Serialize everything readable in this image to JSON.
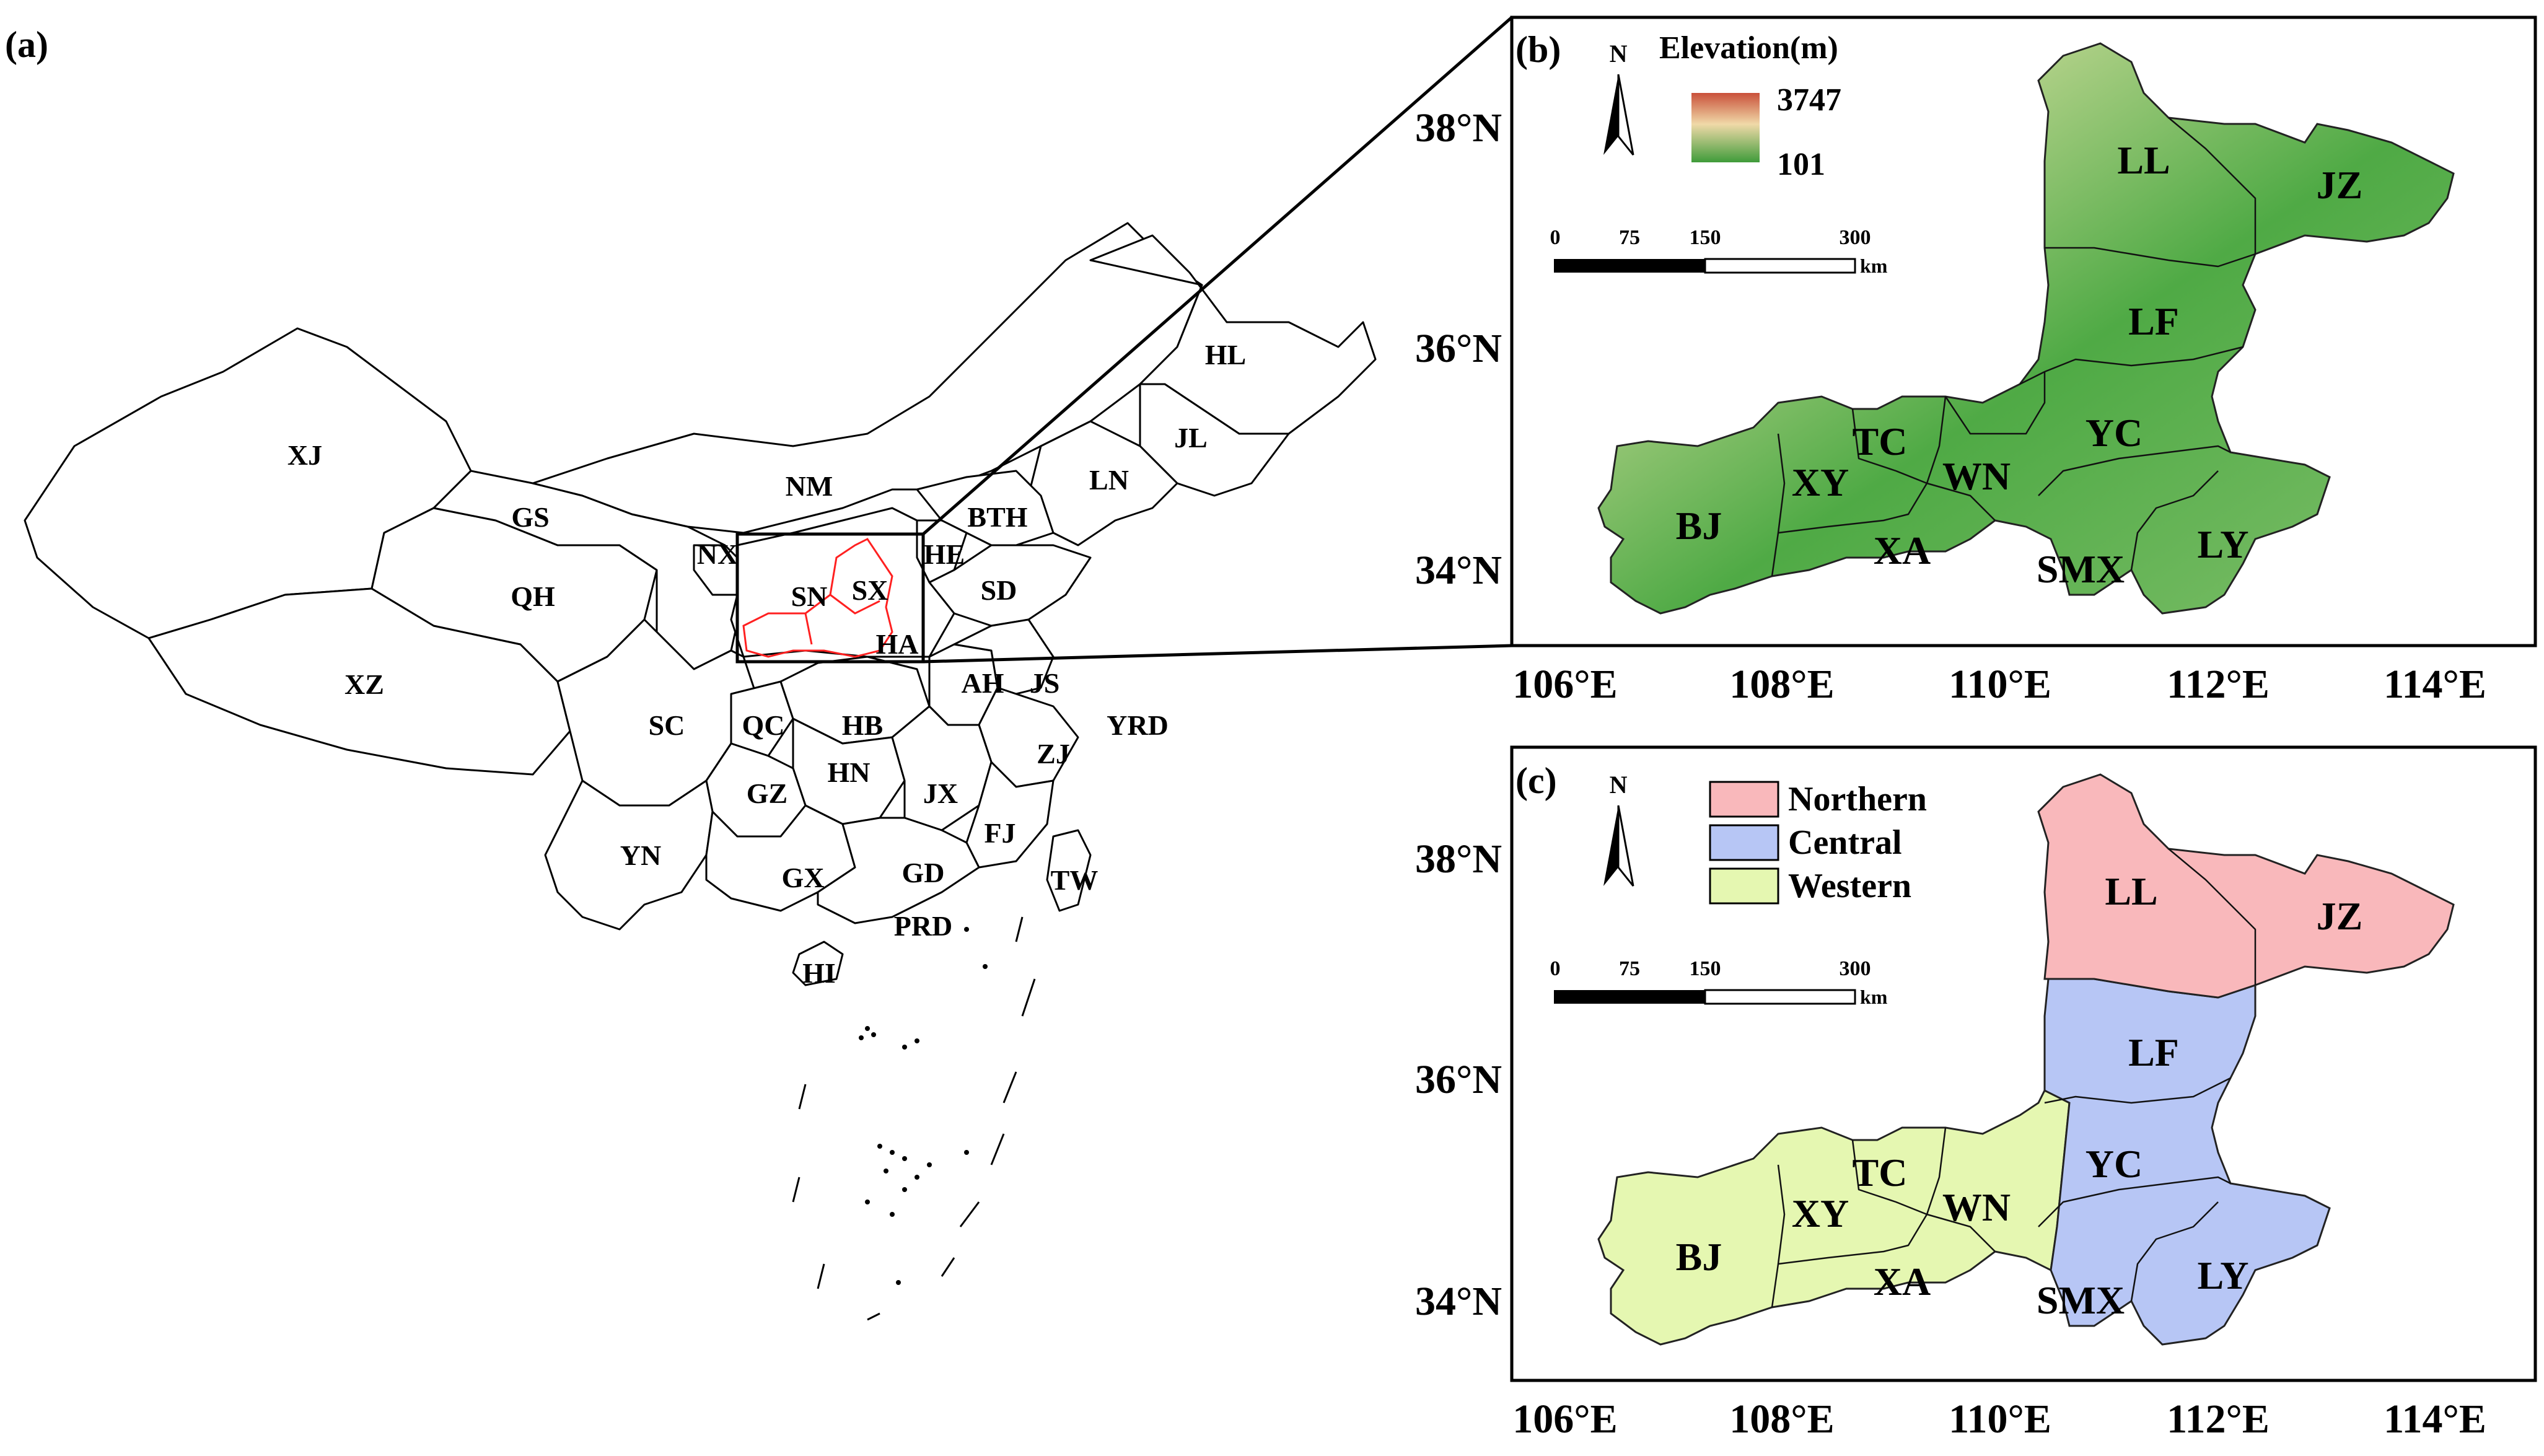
{
  "panels": {
    "a": {
      "label": "(a)"
    },
    "b": {
      "label": "(b)"
    },
    "c": {
      "label": "(c)"
    }
  },
  "provinces": [
    "XJ",
    "HL",
    "JL",
    "NM",
    "LN",
    "GS",
    "BTH",
    "NX",
    "HE",
    "QH",
    "SN",
    "SX",
    "SD",
    "HA",
    "XZ",
    "AH",
    "JS",
    "SC",
    "QC",
    "HB",
    "YRD",
    "ZJ",
    "HN",
    "GZ",
    "JX",
    "FJ",
    "YN",
    "GX",
    "GD",
    "TW",
    "PRD",
    "HI"
  ],
  "cities": [
    "LL",
    "JZ",
    "LF",
    "TC",
    "YC",
    "XY",
    "WN",
    "BJ",
    "XA",
    "SMX",
    "LY"
  ],
  "north_arrow": "N",
  "legend_b": {
    "title": "Elevation(m)",
    "max": "3747",
    "min": "101",
    "colors": {
      "high": "#c9503a",
      "mid": "#f0d9a8",
      "low": "#3f9c3a"
    }
  },
  "legend_c": [
    {
      "name": "Northern",
      "color": "#f9b8bb"
    },
    {
      "name": "Central",
      "color": "#b7c6f5"
    },
    {
      "name": "Western",
      "color": "#e5f7b1"
    }
  ],
  "scalebar": {
    "ticks": [
      "0",
      "75",
      "150",
      "300"
    ],
    "unit": "km"
  },
  "axes": {
    "lat": [
      "38°N",
      "36°N",
      "34°N"
    ],
    "lon": [
      "106°E",
      "108°E",
      "110°E",
      "112°E",
      "114°E"
    ]
  }
}
